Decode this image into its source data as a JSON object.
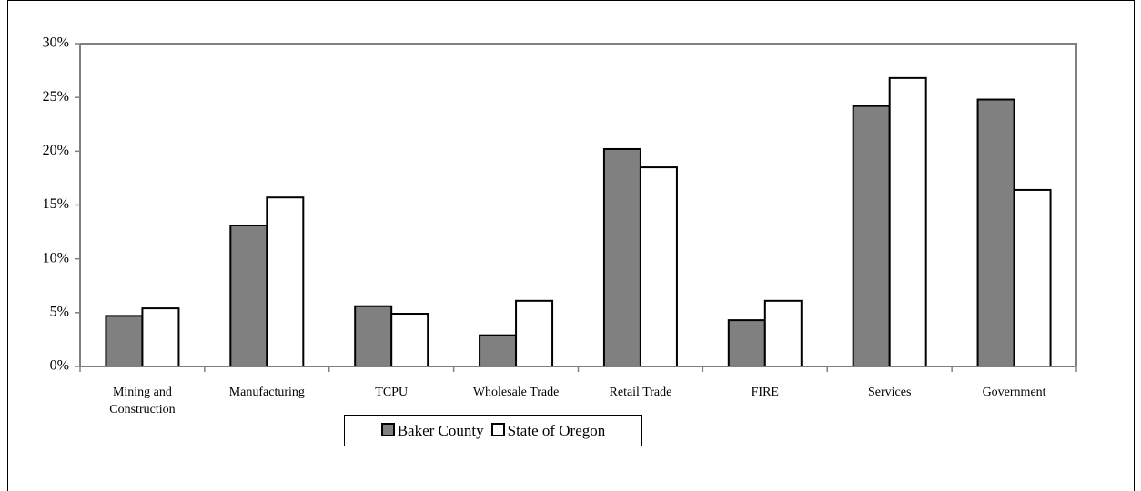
{
  "chart_data": {
    "type": "bar",
    "categories": [
      "Mining and Construction",
      "Manufacturing",
      "TCPU",
      "Wholesale Trade",
      "Retail Trade",
      "FIRE",
      "Services",
      "Government"
    ],
    "series": [
      {
        "name": "Baker County",
        "color": "#808080",
        "values": [
          4.7,
          13.1,
          5.6,
          2.9,
          20.2,
          4.3,
          24.2,
          24.8
        ]
      },
      {
        "name": "State of Oregon",
        "color": "#ffffff",
        "values": [
          5.4,
          15.7,
          4.9,
          6.1,
          18.5,
          6.1,
          26.8,
          16.4
        ]
      }
    ],
    "ylim": [
      0,
      30
    ],
    "yticks": [
      {
        "value": 0,
        "label": "0%"
      },
      {
        "value": 5,
        "label": "5%"
      },
      {
        "value": 10,
        "label": "10%"
      },
      {
        "value": 15,
        "label": "15%"
      },
      {
        "value": 20,
        "label": "20%"
      },
      {
        "value": 25,
        "label": "25%"
      },
      {
        "value": 30,
        "label": "30%"
      }
    ],
    "grid": false
  }
}
